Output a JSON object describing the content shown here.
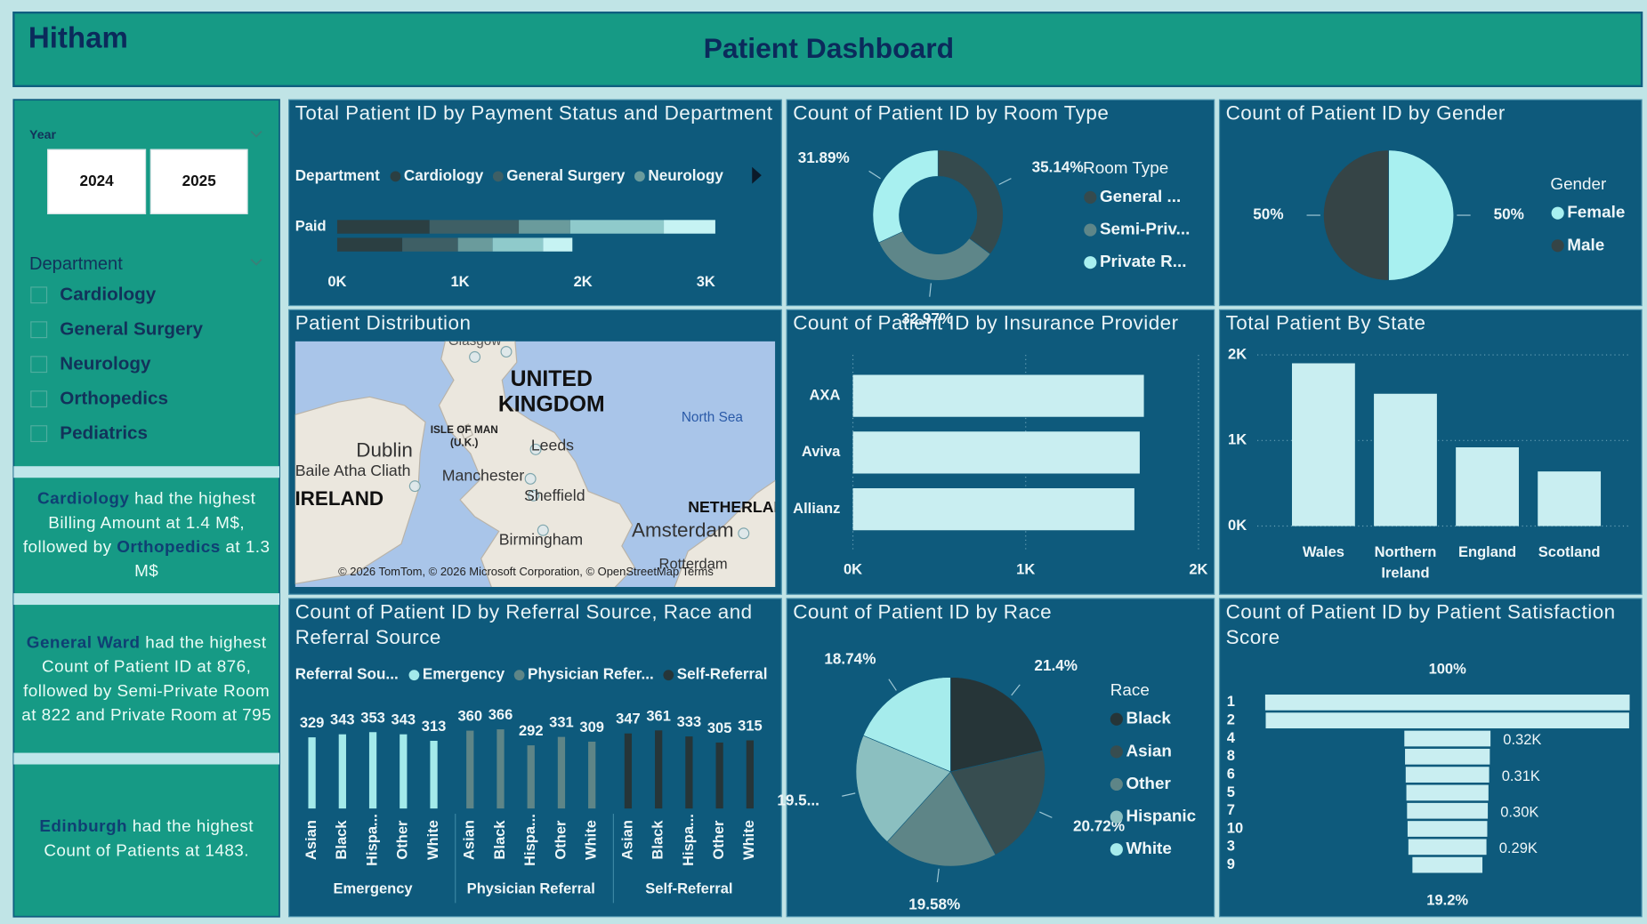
{
  "header": {
    "brand": "Hitham",
    "title": "Patient Dashboard"
  },
  "slicers": {
    "year": {
      "label": "Year",
      "options": [
        "2024",
        "2025"
      ]
    },
    "department": {
      "label": "Department",
      "options": [
        "Cardiology",
        "General Surgery",
        "Neurology",
        "Orthopedics",
        "Pediatrics"
      ]
    }
  },
  "cards": [
    {
      "parts": [
        {
          "text": "Cardiology",
          "highlight": true
        },
        {
          "text": " had the highest Billing Amount at 1.4 M$, followed by ",
          "highlight": false
        },
        {
          "text": "Orthopedics",
          "highlight": true
        },
        {
          "text": " at 1.3 M$",
          "highlight": false
        }
      ]
    },
    {
      "parts": [
        {
          "text": "General Ward",
          "highlight": true
        },
        {
          "text": " had the highest Count of Patient ID at 876, followed by Semi-Private Room at 822 and Private Room at 795",
          "highlight": false
        }
      ]
    },
    {
      "parts": [
        {
          "text": "Edinburgh",
          "highlight": true
        },
        {
          "text": " had the highest Count of Patients at 1483.",
          "highlight": false
        }
      ]
    }
  ],
  "chart_data": [
    {
      "type": "stacked_bar",
      "title": "Total Patient ID by Payment Status and Department",
      "legend_title": "Department",
      "categories": [
        "Paid",
        null
      ],
      "series": [
        {
          "name": "Cardiology",
          "color": "#2b3f42",
          "values": [
            752,
            530
          ]
        },
        {
          "name": "General Surgery",
          "color": "#3e5f65",
          "values": [
            726,
            453
          ]
        },
        {
          "name": "Neurology",
          "color": "#6a9b9c",
          "values": [
            419,
            282
          ]
        },
        {
          "color": "#8fcacb",
          "values": [
            761,
            410
          ]
        },
        {
          "color": "#c6f3f3",
          "values": [
            419,
            239
          ]
        }
      ],
      "xlim": [
        0,
        3500
      ],
      "xticks": [
        {
          "value": 0,
          "label": "0K"
        },
        {
          "value": 1000,
          "label": "1K"
        },
        {
          "value": 2000,
          "label": "2K"
        },
        {
          "value": 3000,
          "label": "3K"
        }
      ]
    },
    {
      "type": "donut",
      "title": "Count of Patient ID by Room Type",
      "legend_title": "Room Type",
      "categories": [
        "General ...",
        "Semi-Priv...",
        "Private R..."
      ],
      "values": [
        35.14,
        32.97,
        31.89
      ],
      "value_labels": [
        "35.14%",
        "32.97%",
        "31.89%"
      ],
      "colors": [
        "#354a4d",
        "#5e8689",
        "#a8f0f0"
      ]
    },
    {
      "type": "pie",
      "title": "Count of Patient ID by Gender",
      "legend_title": "Gender",
      "categories": [
        "Female",
        "Male"
      ],
      "values": [
        50,
        50
      ],
      "value_labels": [
        "50%",
        "50%"
      ],
      "colors": [
        "#a8f0f0",
        "#354446"
      ]
    },
    {
      "type": "map",
      "title": "Patient Distribution",
      "labels": [
        "Glasgow",
        "UNITED",
        "KINGDOM",
        "ISLE OF MAN",
        "(U.K.)",
        "Dublin",
        "Baile Atha Cliath",
        "IRELAND",
        "Leeds",
        "Manchester",
        "Sheffield",
        "North Sea",
        "NETHERLANDS",
        "Amsterdam",
        "Birmingham",
        "Rotterdam",
        "© 2026 TomTom, © 2026 Microsoft Corporation, © OpenStreetMap  Terms"
      ]
    },
    {
      "type": "bar_h",
      "title": "Count of Patient ID by Insurance Provider",
      "categories": [
        "AXA",
        "Aviva",
        "Allianz"
      ],
      "values": [
        1684,
        1660,
        1629
      ],
      "color": "#c9eef1",
      "xlim": [
        0,
        2000
      ],
      "xticks": [
        {
          "value": 0,
          "label": "0K"
        },
        {
          "value": 1000,
          "label": "1K"
        },
        {
          "value": 2000,
          "label": "2K"
        }
      ],
      "grid": true
    },
    {
      "type": "bar",
      "title": "Total Patient By State",
      "categories": [
        "Wales",
        "Northern Ireland",
        "England",
        "Scotland"
      ],
      "values": [
        1902,
        1546,
        920,
        638
      ],
      "color": "#c9eef1",
      "ylim": [
        0,
        2000
      ],
      "yticks": [
        {
          "value": 0,
          "label": "0K"
        },
        {
          "value": 1000,
          "label": "1K"
        },
        {
          "value": 2000,
          "label": "2K"
        }
      ],
      "grid": true
    },
    {
      "type": "grouped_bar",
      "title": "Count of Patient ID by Referral Source, Race and Referral Source",
      "legend_title": "Referral Sou...",
      "groups": [
        "Emergency",
        "Physician Referral",
        "Self-Referral"
      ],
      "categories": [
        "Asian",
        "Black",
        "Hispa...",
        "Other",
        "White"
      ],
      "series": [
        {
          "name": "Emergency",
          "color": "#a3eaea",
          "values": [
            329,
            343,
            353,
            343,
            313
          ]
        },
        {
          "name": "Physician Refer...",
          "color": "#5e8587",
          "values": [
            360,
            366,
            292,
            331,
            309
          ]
        },
        {
          "name": "Self-Referral",
          "color": "#263538",
          "values": [
            347,
            361,
            333,
            305,
            315
          ]
        }
      ],
      "ylim": [
        0,
        500
      ]
    },
    {
      "type": "pie",
      "title": "Count of Patient ID by Race",
      "legend_title": "Race",
      "categories": [
        "Black",
        "Asian",
        "Other",
        "Hispanic",
        "White"
      ],
      "values": [
        21.4,
        20.72,
        19.58,
        19.56,
        18.74
      ],
      "value_labels": [
        "21.4%",
        "20.72%",
        "19.58%",
        "19.5...",
        "18.74%"
      ],
      "colors": [
        "#263538",
        "#374d50",
        "#5e8587",
        "#8bbfc0",
        "#a6ecec"
      ]
    },
    {
      "type": "funnel",
      "title": "Count of Patient ID by Patient Satisfaction Score",
      "categories": [
        "1",
        "2",
        "4",
        "8",
        "6",
        "5",
        "7",
        "10",
        "3",
        "9"
      ],
      "values": [
        1354,
        1350,
        320,
        315,
        310,
        305,
        300,
        296,
        290,
        260
      ],
      "value_labels": [
        null,
        null,
        "0.32K",
        null,
        "0.31K",
        null,
        "0.30K",
        null,
        "0.29K",
        null
      ],
      "top_label": "100%",
      "bottom_label": "19.2%",
      "color": "#c9eef1"
    }
  ]
}
